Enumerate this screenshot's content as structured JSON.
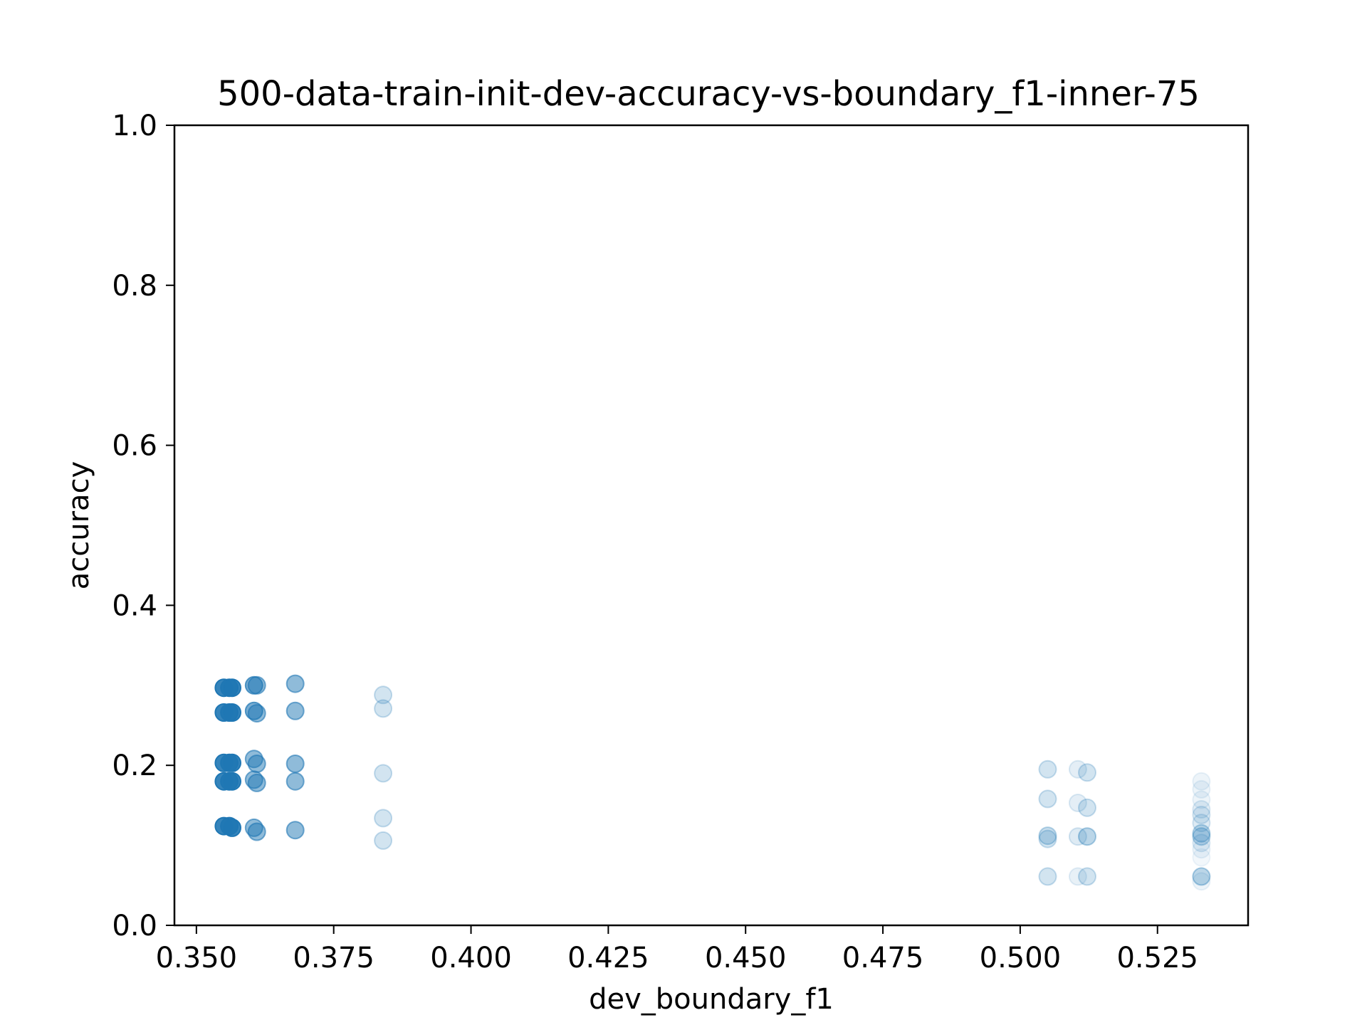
{
  "chart_data": {
    "type": "scatter",
    "title": "500-data-train-init-dev-accuracy-vs-boundary_f1-inner-75",
    "xlabel": "dev_boundary_f1",
    "ylabel": "accuracy",
    "xlim": [
      0.346,
      0.5415
    ],
    "ylim": [
      0.0,
      1.0
    ],
    "xticks": [
      0.35,
      0.375,
      0.4,
      0.425,
      0.45,
      0.475,
      0.5,
      0.525
    ],
    "xtick_labels": [
      "0.350",
      "0.375",
      "0.400",
      "0.425",
      "0.450",
      "0.475",
      "0.500",
      "0.525"
    ],
    "yticks": [
      0.0,
      0.2,
      0.4,
      0.6,
      0.8,
      1.0
    ],
    "ytick_labels": [
      "0.0",
      "0.2",
      "0.4",
      "0.6",
      "0.8",
      "1.0"
    ],
    "grid": false,
    "marker_color": "#1f77b4",
    "points": [
      {
        "x": 0.355,
        "y": 0.297,
        "alpha": 0.9
      },
      {
        "x": 0.356,
        "y": 0.297,
        "alpha": 0.9
      },
      {
        "x": 0.3565,
        "y": 0.297,
        "alpha": 0.9
      },
      {
        "x": 0.355,
        "y": 0.266,
        "alpha": 0.9
      },
      {
        "x": 0.356,
        "y": 0.266,
        "alpha": 0.9
      },
      {
        "x": 0.3565,
        "y": 0.266,
        "alpha": 0.9
      },
      {
        "x": 0.355,
        "y": 0.203,
        "alpha": 0.9
      },
      {
        "x": 0.356,
        "y": 0.203,
        "alpha": 0.9
      },
      {
        "x": 0.3565,
        "y": 0.203,
        "alpha": 0.9
      },
      {
        "x": 0.355,
        "y": 0.18,
        "alpha": 0.9
      },
      {
        "x": 0.356,
        "y": 0.18,
        "alpha": 0.9
      },
      {
        "x": 0.3565,
        "y": 0.18,
        "alpha": 0.9
      },
      {
        "x": 0.355,
        "y": 0.124,
        "alpha": 0.9
      },
      {
        "x": 0.356,
        "y": 0.124,
        "alpha": 0.9
      },
      {
        "x": 0.3565,
        "y": 0.122,
        "alpha": 0.9
      },
      {
        "x": 0.3605,
        "y": 0.3,
        "alpha": 0.6
      },
      {
        "x": 0.361,
        "y": 0.3,
        "alpha": 0.5
      },
      {
        "x": 0.3605,
        "y": 0.268,
        "alpha": 0.6
      },
      {
        "x": 0.361,
        "y": 0.265,
        "alpha": 0.5
      },
      {
        "x": 0.3605,
        "y": 0.208,
        "alpha": 0.5
      },
      {
        "x": 0.361,
        "y": 0.202,
        "alpha": 0.5
      },
      {
        "x": 0.3605,
        "y": 0.182,
        "alpha": 0.5
      },
      {
        "x": 0.361,
        "y": 0.178,
        "alpha": 0.5
      },
      {
        "x": 0.3605,
        "y": 0.122,
        "alpha": 0.5
      },
      {
        "x": 0.361,
        "y": 0.117,
        "alpha": 0.5
      },
      {
        "x": 0.368,
        "y": 0.302,
        "alpha": 0.5
      },
      {
        "x": 0.368,
        "y": 0.268,
        "alpha": 0.5
      },
      {
        "x": 0.368,
        "y": 0.202,
        "alpha": 0.5
      },
      {
        "x": 0.368,
        "y": 0.18,
        "alpha": 0.5
      },
      {
        "x": 0.368,
        "y": 0.119,
        "alpha": 0.5
      },
      {
        "x": 0.384,
        "y": 0.288,
        "alpha": 0.2
      },
      {
        "x": 0.384,
        "y": 0.271,
        "alpha": 0.2
      },
      {
        "x": 0.384,
        "y": 0.19,
        "alpha": 0.2
      },
      {
        "x": 0.384,
        "y": 0.134,
        "alpha": 0.2
      },
      {
        "x": 0.384,
        "y": 0.106,
        "alpha": 0.2
      },
      {
        "x": 0.505,
        "y": 0.195,
        "alpha": 0.2
      },
      {
        "x": 0.505,
        "y": 0.158,
        "alpha": 0.2
      },
      {
        "x": 0.505,
        "y": 0.112,
        "alpha": 0.25
      },
      {
        "x": 0.505,
        "y": 0.108,
        "alpha": 0.2
      },
      {
        "x": 0.505,
        "y": 0.061,
        "alpha": 0.2
      },
      {
        "x": 0.5105,
        "y": 0.195,
        "alpha": 0.12
      },
      {
        "x": 0.5105,
        "y": 0.153,
        "alpha": 0.12
      },
      {
        "x": 0.5105,
        "y": 0.111,
        "alpha": 0.15
      },
      {
        "x": 0.5105,
        "y": 0.061,
        "alpha": 0.1
      },
      {
        "x": 0.5122,
        "y": 0.191,
        "alpha": 0.2
      },
      {
        "x": 0.5122,
        "y": 0.147,
        "alpha": 0.2
      },
      {
        "x": 0.5122,
        "y": 0.111,
        "alpha": 0.3
      },
      {
        "x": 0.5122,
        "y": 0.061,
        "alpha": 0.2
      },
      {
        "x": 0.533,
        "y": 0.18,
        "alpha": 0.08
      },
      {
        "x": 0.533,
        "y": 0.17,
        "alpha": 0.08
      },
      {
        "x": 0.533,
        "y": 0.157,
        "alpha": 0.08
      },
      {
        "x": 0.533,
        "y": 0.145,
        "alpha": 0.12
      },
      {
        "x": 0.533,
        "y": 0.138,
        "alpha": 0.15
      },
      {
        "x": 0.533,
        "y": 0.128,
        "alpha": 0.15
      },
      {
        "x": 0.533,
        "y": 0.115,
        "alpha": 0.25
      },
      {
        "x": 0.533,
        "y": 0.111,
        "alpha": 0.25
      },
      {
        "x": 0.533,
        "y": 0.103,
        "alpha": 0.12
      },
      {
        "x": 0.533,
        "y": 0.095,
        "alpha": 0.08
      },
      {
        "x": 0.533,
        "y": 0.085,
        "alpha": 0.06
      },
      {
        "x": 0.533,
        "y": 0.061,
        "alpha": 0.3
      },
      {
        "x": 0.533,
        "y": 0.055,
        "alpha": 0.08
      }
    ]
  }
}
